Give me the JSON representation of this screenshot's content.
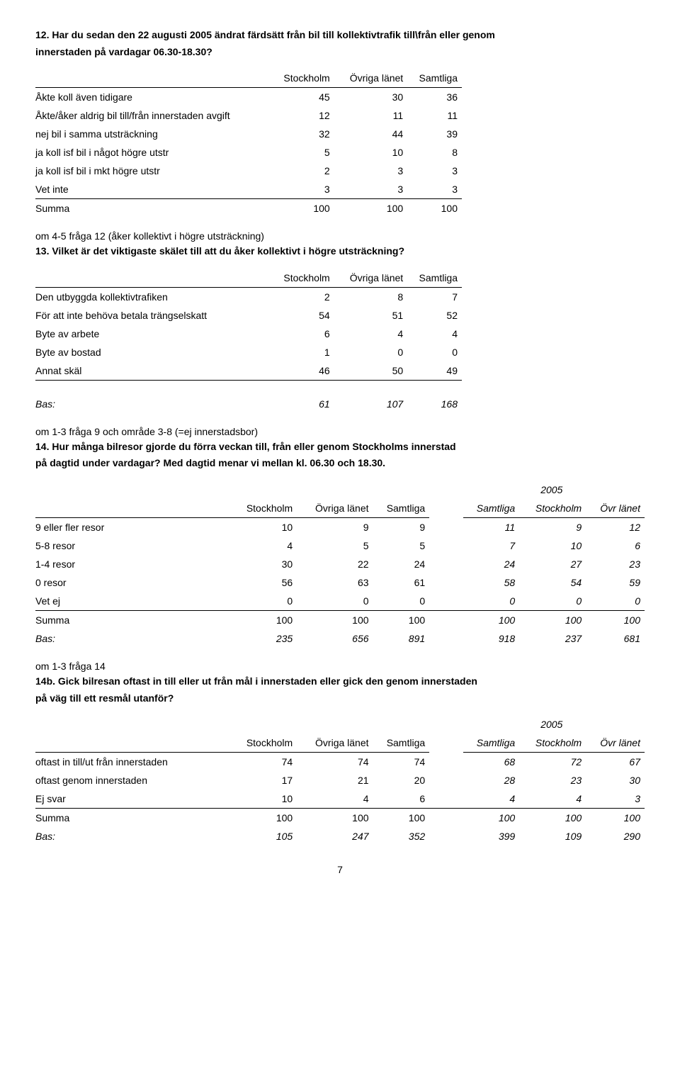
{
  "q12": {
    "title_l1": "12. Har du sedan den 22 augusti 2005 ändrat färdsätt från bil till kollektivtrafik till\\från eller genom",
    "title_l2": "innerstaden på vardagar 06.30-18.30?",
    "headers": [
      "",
      "Stockholm",
      "Övriga länet",
      "Samtliga"
    ],
    "rows": [
      {
        "label": "Åkte koll även tidigare",
        "v": [
          "45",
          "30",
          "36"
        ]
      },
      {
        "label": "Åkte/åker aldrig bil till/från innerstaden avgift",
        "v": [
          "12",
          "11",
          "11"
        ]
      },
      {
        "label": "nej bil i samma utsträckning",
        "v": [
          "32",
          "44",
          "39"
        ]
      },
      {
        "label": "ja koll isf bil i något högre utstr",
        "v": [
          "5",
          "10",
          "8"
        ]
      },
      {
        "label": "ja koll isf bil i mkt högre utstr",
        "v": [
          "2",
          "3",
          "3"
        ]
      },
      {
        "label": "Vet inte",
        "v": [
          "3",
          "3",
          "3"
        ]
      }
    ],
    "sum": {
      "label": "Summa",
      "v": [
        "100",
        "100",
        "100"
      ]
    }
  },
  "q13": {
    "note": "om 4-5 fråga 12 (åker kollektivt i högre utsträckning)",
    "title": "13. Vilket är det viktigaste skälet till att du åker kollektivt i högre utsträckning?",
    "headers": [
      "",
      "Stockholm",
      "Övriga länet",
      "Samtliga"
    ],
    "rows": [
      {
        "label": "Den utbyggda kollektivtrafiken",
        "v": [
          "2",
          "8",
          "7"
        ]
      },
      {
        "label": "För att inte behöva betala trängselskatt",
        "v": [
          "54",
          "51",
          "52"
        ]
      },
      {
        "label": "Byte av arbete",
        "v": [
          "6",
          "4",
          "4"
        ]
      },
      {
        "label": "Byte av bostad",
        "v": [
          "1",
          "0",
          "0"
        ]
      },
      {
        "label": "Annat skäl",
        "v": [
          "46",
          "50",
          "49"
        ]
      }
    ],
    "bas": {
      "label": "Bas:",
      "v": [
        "61",
        "107",
        "168"
      ]
    }
  },
  "q14": {
    "note": "om 1-3 fråga 9 och område 3-8 (=ej innerstadsbor)",
    "title_l1": "14. Hur många bilresor gjorde du förra veckan till, från eller genom Stockholms innerstad",
    "title_l2": "på dagtid under vardagar? Med dagtid menar vi mellan kl. 06.30 och 18.30.",
    "year": "2005",
    "headers": [
      "",
      "Stockholm",
      "Övriga länet",
      "Samtliga",
      "",
      "Samtliga",
      "Stockholm",
      "Övr länet"
    ],
    "rows": [
      {
        "label": "9 eller fler resor",
        "v": [
          "10",
          "9",
          "9"
        ],
        "v2": [
          "11",
          "9",
          "12"
        ]
      },
      {
        "label": "5-8 resor",
        "v": [
          "4",
          "5",
          "5"
        ],
        "v2": [
          "7",
          "10",
          "6"
        ]
      },
      {
        "label": "1-4 resor",
        "v": [
          "30",
          "22",
          "24"
        ],
        "v2": [
          "24",
          "27",
          "23"
        ]
      },
      {
        "label": "0 resor",
        "v": [
          "56",
          "63",
          "61"
        ],
        "v2": [
          "58",
          "54",
          "59"
        ]
      },
      {
        "label": "Vet ej",
        "v": [
          "0",
          "0",
          "0"
        ],
        "v2": [
          "0",
          "0",
          "0"
        ]
      }
    ],
    "sum": {
      "label": "Summa",
      "v": [
        "100",
        "100",
        "100"
      ],
      "v2": [
        "100",
        "100",
        "100"
      ]
    },
    "bas": {
      "label": "Bas:",
      "v": [
        "235",
        "656",
        "891"
      ],
      "v2": [
        "918",
        "237",
        "681"
      ]
    }
  },
  "q14b": {
    "note": "om 1-3 fråga 14",
    "title_l1": "14b. Gick bilresan oftast in till eller ut från mål i innerstaden eller gick den genom innerstaden",
    "title_l2": "på väg till ett resmål utanför?",
    "year": "2005",
    "headers": [
      "",
      "Stockholm",
      "Övriga länet",
      "Samtliga",
      "",
      "Samtliga",
      "Stockholm",
      "Övr länet"
    ],
    "rows": [
      {
        "label": "oftast in till/ut från innerstaden",
        "v": [
          "74",
          "74",
          "74"
        ],
        "v2": [
          "68",
          "72",
          "67"
        ]
      },
      {
        "label": "oftast genom innerstaden",
        "v": [
          "17",
          "21",
          "20"
        ],
        "v2": [
          "28",
          "23",
          "30"
        ]
      },
      {
        "label": "Ej svar",
        "v": [
          "10",
          "4",
          "6"
        ],
        "v2": [
          "4",
          "4",
          "3"
        ]
      }
    ],
    "sum": {
      "label": "Summa",
      "v": [
        "100",
        "100",
        "100"
      ],
      "v2": [
        "100",
        "100",
        "100"
      ]
    },
    "bas": {
      "label": "Bas:",
      "v": [
        "105",
        "247",
        "352"
      ],
      "v2": [
        "399",
        "109",
        "290"
      ]
    }
  },
  "page_number": "7"
}
